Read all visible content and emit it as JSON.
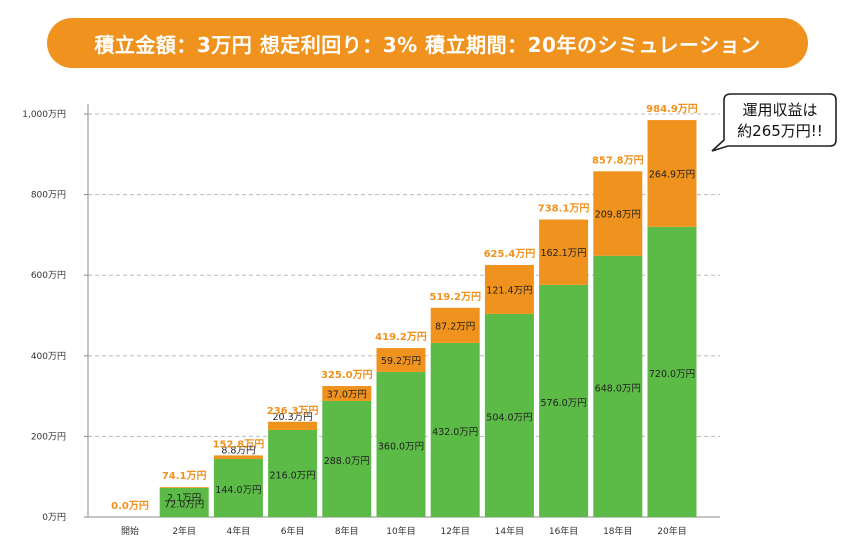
{
  "banner": {
    "title": "積立金額：3万円  想定利回り：3%  積立期間：20年のシミュレーション"
  },
  "callout": {
    "line1": "運用収益は",
    "line2": "約265万円!!"
  },
  "colors": {
    "principal": "#5cba47",
    "gain": "#f0921e",
    "banner": "#f0921e",
    "total_label": "#f0921e",
    "grid": "#bbbbbb"
  },
  "chart_data": {
    "type": "bar",
    "stacked": true,
    "title": "",
    "xlabel": "",
    "ylabel": "",
    "ylim": [
      0,
      1000
    ],
    "grid": true,
    "y_ticks": [
      0,
      200,
      400,
      600,
      800,
      1000
    ],
    "y_tick_labels": [
      "0万円",
      "200万円",
      "400万円",
      "600万円",
      "800万円",
      "1,000万円"
    ],
    "categories": [
      "開始",
      "2年目",
      "4年目",
      "6年目",
      "8年目",
      "10年目",
      "12年目",
      "14年目",
      "16年目",
      "18年目",
      "20年目"
    ],
    "series": [
      {
        "key": "principal",
        "values": [
          0,
          72.0,
          144.0,
          216.0,
          288.0,
          360.0,
          432.0,
          504.0,
          576.0,
          648.0,
          720.0
        ],
        "labels": [
          "",
          "72.0万円",
          "144.0万円",
          "216.0万円",
          "288.0万円",
          "360.0万円",
          "432.0万円",
          "504.0万円",
          "576.0万円",
          "648.0万円",
          "720.0万円"
        ]
      },
      {
        "key": "gain",
        "values": [
          0,
          2.1,
          8.8,
          20.3,
          37.0,
          59.2,
          87.2,
          121.4,
          162.1,
          209.8,
          264.9
        ],
        "labels": [
          "",
          "2.1万円",
          "8.8万円",
          "20.3万円",
          "37.0万円",
          "59.2万円",
          "87.2万円",
          "121.4万円",
          "162.1万円",
          "209.8万円",
          "264.9万円"
        ]
      }
    ],
    "totals": [
      0,
      74.1,
      152.8,
      236.3,
      325.0,
      419.2,
      519.2,
      625.4,
      738.1,
      857.8,
      984.9
    ],
    "total_labels": [
      "0.0万円",
      "74.1万円",
      "152.8万円",
      "236.3万円",
      "325.0万円",
      "419.2万円",
      "519.2万円",
      "625.4万円",
      "738.1万円",
      "857.8万円",
      "984.9万円"
    ]
  }
}
